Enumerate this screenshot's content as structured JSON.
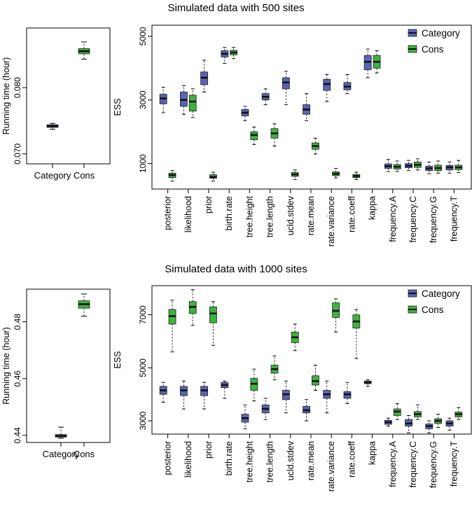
{
  "colors": {
    "category": "#5a64b4",
    "cons": "#3cb43c",
    "median": "#111111"
  },
  "panels": [
    {
      "id": "p500",
      "title": "Simulated data with 500 sites",
      "runtime": {
        "ylabel": "Running time (hour)",
        "categories": [
          "Category",
          "Cons"
        ],
        "ticks": [
          "0.070",
          "0.080"
        ],
        "tick_values": [
          0.07,
          0.08
        ],
        "ylim": [
          0.0685,
          0.089
        ],
        "boxes": [
          {
            "group": "Category",
            "min": 0.0737,
            "q1": 0.074,
            "median": 0.0742,
            "q3": 0.0744,
            "max": 0.0746
          },
          {
            "group": "Cons",
            "min": 0.0843,
            "q1": 0.0851,
            "median": 0.0855,
            "q3": 0.0859,
            "max": 0.0869
          }
        ]
      },
      "ess": {
        "ylabel": "ESS",
        "ticks": [
          "1000",
          "3000",
          "5000"
        ],
        "tick_values": [
          1000,
          3000,
          5000
        ],
        "ylim": [
          200,
          5350
        ],
        "categories": [
          "posterior",
          "likelihood",
          "prior",
          "birth.rate",
          "tree.height",
          "tree.length",
          "ucld.stdev",
          "rate.mean",
          "rate.variance",
          "rate.coeff",
          "kappa",
          "frequency.A",
          "frequency.C",
          "frequency.G",
          "frequency.T"
        ],
        "legend": [
          "Category",
          "Cons"
        ],
        "boxes": [
          {
            "cat": "posterior",
            "group": "Category",
            "min": 2600,
            "q1": 2880,
            "median": 3050,
            "q3": 3180,
            "max": 3400
          },
          {
            "cat": "posterior",
            "group": "Cons",
            "min": 450,
            "q1": 560,
            "median": 640,
            "q3": 700,
            "max": 780
          },
          {
            "cat": "likelihood",
            "group": "Category",
            "min": 2550,
            "q1": 2800,
            "median": 3000,
            "q3": 3250,
            "max": 3450
          },
          {
            "cat": "likelihood",
            "group": "Cons",
            "min": 2450,
            "q1": 2650,
            "median": 2950,
            "q3": 3150,
            "max": 3350
          },
          {
            "cat": "prior",
            "group": "Category",
            "min": 3250,
            "q1": 3480,
            "median": 3700,
            "q3": 3880,
            "max": 4250
          },
          {
            "cat": "prior",
            "group": "Cons",
            "min": 450,
            "q1": 540,
            "median": 580,
            "q3": 650,
            "max": 730
          },
          {
            "cat": "birth.rate",
            "group": "Category",
            "min": 4150,
            "q1": 4350,
            "median": 4450,
            "q3": 4550,
            "max": 4650
          },
          {
            "cat": "birth.rate",
            "group": "Cons",
            "min": 4300,
            "q1": 4420,
            "median": 4490,
            "q3": 4560,
            "max": 4650
          },
          {
            "cat": "tree.height",
            "group": "Category",
            "min": 2350,
            "q1": 2500,
            "median": 2600,
            "q3": 2700,
            "max": 2800
          },
          {
            "cat": "tree.height",
            "group": "Cons",
            "min": 1600,
            "q1": 1750,
            "median": 1900,
            "q3": 2000,
            "max": 2150
          },
          {
            "cat": "tree.length",
            "group": "Category",
            "min": 2850,
            "q1": 3000,
            "median": 3100,
            "q3": 3200,
            "max": 3350
          },
          {
            "cat": "tree.length",
            "group": "Cons",
            "min": 1550,
            "q1": 1800,
            "median": 1950,
            "q3": 2100,
            "max": 2250
          },
          {
            "cat": "ucld.stdev",
            "group": "Category",
            "min": 2850,
            "q1": 3350,
            "median": 3550,
            "q3": 3700,
            "max": 3900
          },
          {
            "cat": "ucld.stdev",
            "group": "Cons",
            "min": 500,
            "q1": 600,
            "median": 660,
            "q3": 720,
            "max": 800
          },
          {
            "cat": "rate.mean",
            "group": "Category",
            "min": 2350,
            "q1": 2550,
            "median": 2700,
            "q3": 2850,
            "max": 3200
          },
          {
            "cat": "rate.mean",
            "group": "Cons",
            "min": 1300,
            "q1": 1450,
            "median": 1550,
            "q3": 1650,
            "max": 1800
          },
          {
            "cat": "rate.variance",
            "group": "Category",
            "min": 2950,
            "q1": 3300,
            "median": 3500,
            "q3": 3650,
            "max": 3800
          },
          {
            "cat": "rate.variance",
            "group": "Cons",
            "min": 550,
            "q1": 620,
            "median": 680,
            "q3": 740,
            "max": 850
          },
          {
            "cat": "rate.coeff",
            "group": "Category",
            "min": 3200,
            "q1": 3320,
            "median": 3420,
            "q3": 3550,
            "max": 3800
          },
          {
            "cat": "rate.coeff",
            "group": "Cons",
            "min": 500,
            "q1": 560,
            "median": 610,
            "q3": 660,
            "max": 730
          },
          {
            "cat": "kappa",
            "group": "Category",
            "min": 3700,
            "q1": 3950,
            "median": 4200,
            "q3": 4400,
            "max": 4600
          },
          {
            "cat": "kappa",
            "group": "Cons",
            "min": 3850,
            "q1": 4000,
            "median": 4200,
            "q3": 4400,
            "max": 4550
          },
          {
            "cat": "frequency.A",
            "group": "Category",
            "min": 750,
            "q1": 850,
            "median": 920,
            "q3": 990,
            "max": 1130
          },
          {
            "cat": "frequency.A",
            "group": "Cons",
            "min": 750,
            "q1": 830,
            "median": 900,
            "q3": 970,
            "max": 1080
          },
          {
            "cat": "frequency.C",
            "group": "Category",
            "min": 780,
            "q1": 870,
            "median": 930,
            "q3": 1000,
            "max": 1100
          },
          {
            "cat": "frequency.C",
            "group": "Cons",
            "min": 800,
            "q1": 880,
            "median": 960,
            "q3": 1050,
            "max": 1150
          },
          {
            "cat": "frequency.G",
            "group": "Category",
            "min": 680,
            "q1": 780,
            "median": 850,
            "q3": 920,
            "max": 1050
          },
          {
            "cat": "frequency.G",
            "group": "Cons",
            "min": 700,
            "q1": 780,
            "median": 860,
            "q3": 950,
            "max": 1080
          },
          {
            "cat": "frequency.T",
            "group": "Category",
            "min": 700,
            "q1": 800,
            "median": 880,
            "q3": 940,
            "max": 1050
          },
          {
            "cat": "frequency.T",
            "group": "Cons",
            "min": 720,
            "q1": 810,
            "median": 880,
            "q3": 950,
            "max": 1100
          }
        ]
      }
    },
    {
      "id": "p1000",
      "title": "Simulated data with 1000 sites",
      "runtime": {
        "ylabel": "Running time (hour)",
        "categories": [
          "Category",
          "Cons"
        ],
        "ticks": [
          "0.44",
          "0.46",
          "0.48"
        ],
        "tick_values": [
          0.44,
          0.46,
          0.48
        ],
        "ylim": [
          0.4375,
          0.4915
        ],
        "boxes": [
          {
            "group": "Category",
            "min": 0.439,
            "q1": 0.4394,
            "median": 0.4398,
            "q3": 0.4403,
            "max": 0.4429
          },
          {
            "group": "Cons",
            "min": 0.482,
            "q1": 0.4848,
            "median": 0.4862,
            "q3": 0.4874,
            "max": 0.4898
          }
        ]
      },
      "ess": {
        "ylabel": "ESS",
        "ticks": [
          "3000",
          "5000",
          "7000"
        ],
        "tick_values": [
          3000,
          5000,
          7000
        ],
        "ylim": [
          2500,
          8100
        ],
        "categories": [
          "posterior",
          "likelihood",
          "prior",
          "birth.rate",
          "tree.height",
          "tree.length",
          "ucld.stdev",
          "rate.mean",
          "rate.variance",
          "rate.coeff",
          "kappa",
          "frequency.A",
          "frequency.C",
          "frequency.G",
          "frequency.T"
        ],
        "legend": [
          "Category",
          "Cons"
        ],
        "boxes": [
          {
            "cat": "posterior",
            "group": "Category",
            "min": 3700,
            "q1": 4000,
            "median": 4150,
            "q3": 4300,
            "max": 4450
          },
          {
            "cat": "posterior",
            "group": "Cons",
            "min": 5600,
            "q1": 6650,
            "median": 6950,
            "q3": 7200,
            "max": 7550
          },
          {
            "cat": "likelihood",
            "group": "Category",
            "min": 3450,
            "q1": 3950,
            "median": 4150,
            "q3": 4300,
            "max": 4500
          },
          {
            "cat": "likelihood",
            "group": "Cons",
            "min": 6600,
            "q1": 7050,
            "median": 7300,
            "q3": 7500,
            "max": 7950
          },
          {
            "cat": "prior",
            "group": "Category",
            "min": 3450,
            "q1": 3950,
            "median": 4150,
            "q3": 4300,
            "max": 4450
          },
          {
            "cat": "prior",
            "group": "Cons",
            "min": 5850,
            "q1": 6700,
            "median": 7050,
            "q3": 7300,
            "max": 7500
          },
          {
            "cat": "birth.rate",
            "group": "Category",
            "min": 3850,
            "q1": 4250,
            "median": 4350,
            "q3": 4450,
            "max": 4500
          },
          {
            "cat": "tree.height",
            "group": "Category",
            "min": 2700,
            "q1": 2950,
            "median": 3100,
            "q3": 3250,
            "max": 3600
          },
          {
            "cat": "tree.height",
            "group": "Cons",
            "min": 3750,
            "q1": 4150,
            "median": 4400,
            "q3": 4600,
            "max": 4950
          },
          {
            "cat": "tree.length",
            "group": "Category",
            "min": 3050,
            "q1": 3300,
            "median": 3450,
            "q3": 3600,
            "max": 3850
          },
          {
            "cat": "tree.length",
            "group": "Cons",
            "min": 4550,
            "q1": 4800,
            "median": 4950,
            "q3": 5100,
            "max": 5450
          },
          {
            "cat": "ucld.stdev",
            "group": "Category",
            "min": 3300,
            "q1": 3800,
            "median": 4000,
            "q3": 4150,
            "max": 4500
          },
          {
            "cat": "ucld.stdev",
            "group": "Cons",
            "min": 5650,
            "q1": 5950,
            "median": 6150,
            "q3": 6350,
            "max": 6650
          },
          {
            "cat": "rate.mean",
            "group": "Category",
            "min": 3000,
            "q1": 3300,
            "median": 3400,
            "q3": 3550,
            "max": 3800
          },
          {
            "cat": "rate.mean",
            "group": "Cons",
            "min": 4150,
            "q1": 4350,
            "median": 4500,
            "q3": 4700,
            "max": 5100
          },
          {
            "cat": "rate.variance",
            "group": "Category",
            "min": 3300,
            "q1": 3850,
            "median": 4000,
            "q3": 4150,
            "max": 4500
          },
          {
            "cat": "rate.variance",
            "group": "Cons",
            "min": 6350,
            "q1": 6900,
            "median": 7150,
            "q3": 7450,
            "max": 7600
          },
          {
            "cat": "rate.coeff",
            "group": "Category",
            "min": 3650,
            "q1": 3850,
            "median": 4000,
            "q3": 4100,
            "max": 4450
          },
          {
            "cat": "rate.coeff",
            "group": "Cons",
            "min": 5350,
            "q1": 6500,
            "median": 6750,
            "q3": 7000,
            "max": 7200
          },
          {
            "cat": "kappa",
            "group": "Category",
            "min": 4300,
            "q1": 4400,
            "median": 4450,
            "q3": 4500,
            "max": 4550
          },
          {
            "cat": "frequency.A",
            "group": "Category",
            "min": 2800,
            "q1": 2870,
            "median": 2950,
            "q3": 3020,
            "max": 3100
          },
          {
            "cat": "frequency.A",
            "group": "Cons",
            "min": 3050,
            "q1": 3200,
            "median": 3350,
            "q3": 3450,
            "max": 3650
          },
          {
            "cat": "frequency.C",
            "group": "Category",
            "min": 2550,
            "q1": 2800,
            "median": 2900,
            "q3": 3050,
            "max": 3200
          },
          {
            "cat": "frequency.C",
            "group": "Cons",
            "min": 3050,
            "q1": 3150,
            "median": 3250,
            "q3": 3350,
            "max": 3600
          },
          {
            "cat": "frequency.G",
            "group": "Category",
            "min": 2550,
            "q1": 2700,
            "median": 2800,
            "q3": 2880,
            "max": 3000
          },
          {
            "cat": "frequency.G",
            "group": "Cons",
            "min": 2750,
            "q1": 2900,
            "median": 3000,
            "q3": 3080,
            "max": 3250
          },
          {
            "cat": "frequency.T",
            "group": "Category",
            "min": 2650,
            "q1": 2800,
            "median": 2900,
            "q3": 3000,
            "max": 3100
          },
          {
            "cat": "frequency.T",
            "group": "Cons",
            "min": 3050,
            "q1": 3150,
            "median": 3250,
            "q3": 3330,
            "max": 3500
          }
        ]
      }
    }
  ],
  "chart_data": [
    {
      "type": "box",
      "title": "Simulated data with 500 sites",
      "ylabel": "Running time (hour)",
      "categories": [
        "Category",
        "Cons"
      ],
      "ylim": [
        0.0685,
        0.089
      ]
    },
    {
      "type": "box",
      "title": "Simulated data with 500 sites",
      "ylabel": "ESS",
      "legend": [
        "Category",
        "Cons"
      ],
      "ylim": [
        200,
        5350
      ]
    },
    {
      "type": "box",
      "title": "Simulated data with 1000 sites",
      "ylabel": "Running time (hour)",
      "categories": [
        "Category",
        "Cons"
      ],
      "ylim": [
        0.4375,
        0.4915
      ]
    },
    {
      "type": "box",
      "title": "Simulated data with 1000 sites",
      "ylabel": "ESS",
      "legend": [
        "Category",
        "Cons"
      ],
      "ylim": [
        2500,
        8100
      ]
    }
  ]
}
